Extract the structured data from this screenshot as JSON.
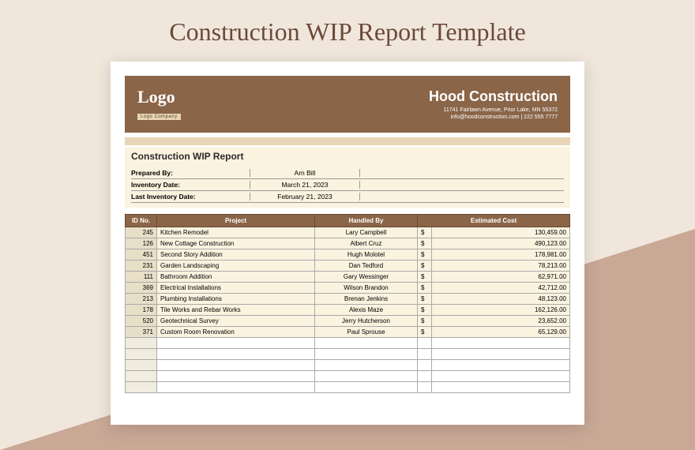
{
  "page": {
    "title": "Construction WIP Report Template"
  },
  "header": {
    "logo_text": "Logo",
    "logo_sub": "Logo Company",
    "company_name": "Hood Construction",
    "address": "11741 Fairlawn Avenue, Prior Lake, MN 55372",
    "contact": "info@hoodconstruction.com | 222 555 7777"
  },
  "report": {
    "title": "Construction WIP Report",
    "meta": [
      {
        "label": "Prepared By:",
        "value": "Arn Bill"
      },
      {
        "label": "Inventory Date:",
        "value": "March 21, 2023"
      },
      {
        "label": "Last Inventory Date:",
        "value": "February 21, 2023"
      }
    ]
  },
  "table": {
    "columns": [
      "ID No.",
      "Project",
      "Handled By",
      "Estimated Cost"
    ],
    "currency": "$",
    "rows": [
      {
        "id": "245",
        "project": "Kitchen Remodel",
        "handled": "Lary Campbell",
        "cost": "130,459.00"
      },
      {
        "id": "126",
        "project": "New Cottage Construction",
        "handled": "Albert Cruz",
        "cost": "490,123.00"
      },
      {
        "id": "451",
        "project": "Second Story Addition",
        "handled": "Hugh Molotel",
        "cost": "178,981.00"
      },
      {
        "id": "231",
        "project": "Garden Landscaping",
        "handled": "Dan Tedford",
        "cost": "78,213.00"
      },
      {
        "id": "111",
        "project": "Bathroom Addition",
        "handled": "Gary Wessinger",
        "cost": "62,971.00"
      },
      {
        "id": "369",
        "project": "Electrical Installations",
        "handled": "Wilson Brandon",
        "cost": "42,712.00"
      },
      {
        "id": "213",
        "project": "Plumbing Installations",
        "handled": "Brenan Jenkins",
        "cost": "48,123.00"
      },
      {
        "id": "178",
        "project": "Tile Works and Rebar Works",
        "handled": "Alexis Maze",
        "cost": "162,126.00"
      },
      {
        "id": "520",
        "project": "Geotechnical Survey",
        "handled": "Jerry Hutcherson",
        "cost": "23,652.00"
      },
      {
        "id": "371",
        "project": "Custom Room Renovation",
        "handled": "Paul Sprouse",
        "cost": "65,129.00"
      }
    ],
    "empty_rows": 5
  },
  "colors": {
    "bg": "#f0e6dc",
    "triangle": "#c9a896",
    "header_brown": "#8a6548",
    "accent_beige": "#e8d5b5",
    "cell_cream": "#faf3df",
    "title_text": "#6b4a3a"
  }
}
